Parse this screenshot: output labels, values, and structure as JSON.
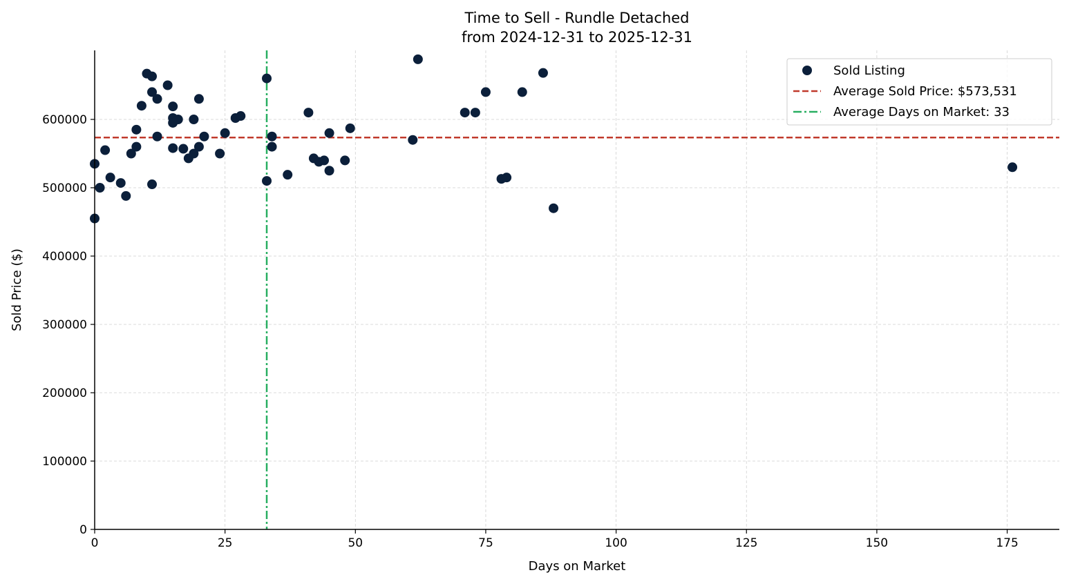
{
  "chart_data": {
    "type": "scatter",
    "title": "Time to Sell - Rundle Detached",
    "subtitle": "from 2024-12-31 to 2025-12-31",
    "xlabel": "Days on Market",
    "ylabel": "Sold Price ($)",
    "xlim": [
      0,
      185
    ],
    "ylim": [
      0,
      701000
    ],
    "xticks": [
      0,
      25,
      50,
      75,
      100,
      125,
      150,
      175
    ],
    "yticks": [
      0,
      100000,
      200000,
      300000,
      400000,
      500000,
      600000
    ],
    "grid": true,
    "legend_position": "top-right",
    "colors": {
      "points": "#0b1f3a",
      "avg_price": "#c0392b",
      "avg_days": "#27ae60",
      "grid": "#d0d0d0"
    },
    "series": [
      {
        "name": "Sold Listing",
        "points": [
          [
            0,
            535000
          ],
          [
            0,
            455000
          ],
          [
            1,
            500000
          ],
          [
            2,
            555000
          ],
          [
            3,
            515000
          ],
          [
            5,
            507000
          ],
          [
            6,
            488000
          ],
          [
            7,
            550000
          ],
          [
            8,
            585000
          ],
          [
            8,
            560000
          ],
          [
            9,
            620000
          ],
          [
            10,
            667000
          ],
          [
            11,
            663000
          ],
          [
            11,
            640000
          ],
          [
            11,
            505000
          ],
          [
            12,
            630000
          ],
          [
            12,
            575000
          ],
          [
            14,
            650000
          ],
          [
            15,
            619000
          ],
          [
            15,
            602000
          ],
          [
            15,
            595000
          ],
          [
            15,
            558000
          ],
          [
            16,
            600000
          ],
          [
            17,
            557000
          ],
          [
            18,
            543000
          ],
          [
            19,
            600000
          ],
          [
            19,
            550000
          ],
          [
            20,
            630000
          ],
          [
            20,
            560000
          ],
          [
            21,
            575000
          ],
          [
            24,
            550000
          ],
          [
            25,
            580000
          ],
          [
            27,
            602000
          ],
          [
            28,
            605000
          ],
          [
            33,
            660000
          ],
          [
            33,
            510000
          ],
          [
            34,
            575000
          ],
          [
            34,
            560000
          ],
          [
            37,
            519000
          ],
          [
            41,
            610000
          ],
          [
            42,
            543000
          ],
          [
            43,
            538000
          ],
          [
            44,
            540000
          ],
          [
            45,
            580000
          ],
          [
            45,
            525000
          ],
          [
            48,
            540000
          ],
          [
            49,
            587000
          ],
          [
            61,
            570000
          ],
          [
            62,
            688000
          ],
          [
            71,
            610000
          ],
          [
            73,
            610000
          ],
          [
            75,
            640000
          ],
          [
            78,
            513000
          ],
          [
            79,
            515000
          ],
          [
            82,
            640000
          ],
          [
            86,
            668000
          ],
          [
            88,
            470000
          ],
          [
            176,
            530000
          ]
        ]
      }
    ],
    "reference_lines": [
      {
        "name": "Average Sold Price: $573,531",
        "orientation": "horizontal",
        "value": 573531,
        "style": "dashed"
      },
      {
        "name": "Average Days on Market: 33",
        "orientation": "vertical",
        "value": 33,
        "style": "dashdot"
      }
    ]
  }
}
